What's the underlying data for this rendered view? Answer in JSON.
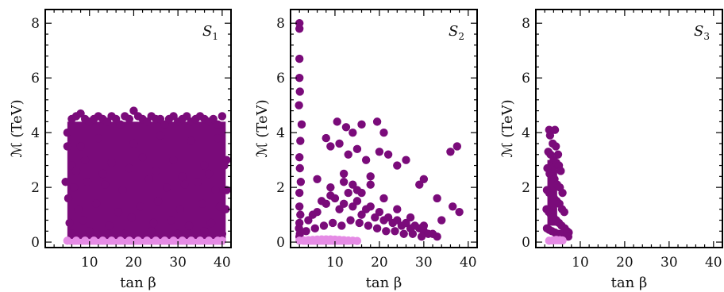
{
  "chart_data": [
    {
      "type": "scatter",
      "title": "S",
      "title_sub": "1",
      "xlabel": "tan β",
      "ylabel": "ℳ (TeV)",
      "xticks": [
        10,
        20,
        30,
        40
      ],
      "yticks": [
        0,
        2,
        4,
        6,
        8
      ],
      "xlim": [
        0,
        42
      ],
      "ylim": [
        -0.2,
        8.5
      ],
      "colors": {
        "main": "#7a0b7a",
        "low": "#e58be5"
      },
      "series": [
        {
          "color": "main",
          "x": [
            5,
            6,
            7,
            8,
            9,
            10,
            11,
            12,
            13,
            14,
            15,
            16,
            17,
            18,
            19,
            20,
            21,
            22,
            23,
            24,
            25,
            26,
            27,
            28,
            29,
            30,
            31,
            32,
            33,
            34,
            35,
            36,
            37,
            38,
            39,
            40,
            8,
            12,
            20,
            26,
            33,
            39,
            6,
            9,
            15,
            22,
            29,
            36,
            41,
            5,
            4.6,
            5.2,
            40.5,
            41,
            40.8,
            6.5,
            9.5,
            13.5,
            17.5,
            23.5,
            27.5,
            31.5,
            34.5,
            38.5,
            7.5,
            11.5,
            16.5,
            21.5,
            25.5,
            30.5,
            35.5,
            39.5,
            5.5,
            8.5,
            14.5,
            19.5,
            24.5,
            28.5,
            32.5,
            37.5,
            6,
            10,
            18,
            24,
            30,
            36,
            40,
            7,
            13,
            19,
            25,
            31,
            37
          ],
          "y": [
            4.0,
            4.5,
            4.6,
            4.7,
            4.5,
            4.4,
            4.5,
            4.6,
            4.5,
            4.4,
            4.6,
            4.5,
            4.3,
            4.6,
            4.5,
            4.8,
            4.6,
            4.5,
            4.4,
            4.6,
            4.5,
            4.5,
            4.3,
            4.5,
            4.6,
            4.4,
            4.5,
            4.6,
            4.4,
            4.5,
            4.6,
            4.5,
            4.4,
            4.5,
            4.3,
            4.6,
            3.5,
            3.8,
            3.6,
            3.9,
            3.7,
            3.8,
            2.8,
            3.0,
            2.9,
            3.1,
            3.0,
            2.8,
            3.0,
            3.5,
            2.2,
            1.6,
            2.8,
            1.9,
            1.2,
            2.0,
            2.2,
            2.1,
            1.9,
            2.3,
            2.0,
            2.1,
            2.2,
            1.9,
            1.2,
            1.4,
            1.1,
            1.3,
            1.5,
            1.2,
            1.4,
            1.3,
            0.7,
            0.8,
            0.6,
            0.9,
            0.7,
            0.8,
            0.6,
            0.7,
            0.3,
            0.4,
            0.3,
            0.4,
            0.3,
            0.4,
            0.3,
            2.6,
            2.5,
            2.7,
            2.6,
            2.4,
            2.5
          ]
        },
        {
          "color": "low",
          "x": [
            5,
            7,
            9,
            11,
            13,
            15,
            17,
            19,
            21,
            23,
            25,
            27,
            29,
            31,
            33,
            35,
            37,
            39,
            40
          ],
          "y": [
            0.05,
            0.05,
            0.05,
            0.05,
            0.05,
            0.05,
            0.05,
            0.05,
            0.05,
            0.05,
            0.05,
            0.05,
            0.05,
            0.05,
            0.05,
            0.05,
            0.05,
            0.05,
            0.05
          ]
        }
      ],
      "fill_region": {
        "x": [
          5,
          40.8
        ],
        "y": [
          0.1,
          4.4
        ]
      }
    },
    {
      "type": "scatter",
      "title": "S",
      "title_sub": "2",
      "xlabel": "tan β",
      "ylabel": "ℳ (TeV)",
      "xticks": [
        10,
        20,
        30,
        40
      ],
      "yticks": [
        0,
        2,
        4,
        6,
        8
      ],
      "xlim": [
        0,
        42
      ],
      "ylim": [
        -0.2,
        8.5
      ],
      "colors": {
        "main": "#7a0b7a",
        "low": "#e58be5"
      },
      "series": [
        {
          "color": "main",
          "x": [
            2,
            2,
            2,
            2,
            2.1,
            1.9,
            2.5,
            2.2,
            2.0,
            2.1,
            2.3,
            2.0,
            2.0,
            2.2,
            2.0,
            1.9,
            2.1,
            2.0,
            10.5,
            12.5,
            14,
            16,
            19.5,
            21,
            8,
            9,
            11,
            13,
            15,
            17,
            20,
            22,
            24,
            26,
            29,
            30,
            33,
            36,
            37.5,
            38,
            36.5,
            12,
            14,
            16,
            18,
            4,
            5,
            6,
            7,
            8,
            9,
            10,
            11,
            12,
            13,
            14,
            15,
            16,
            17,
            18,
            19,
            20,
            21,
            22,
            23,
            24,
            25,
            26,
            27,
            28,
            29,
            30,
            31,
            32,
            33,
            3.5,
            5.5,
            7.5,
            9.5,
            11.5,
            13.5,
            15.5,
            17.5,
            19.5,
            21.5,
            23.5,
            25.5,
            27.5,
            29.5,
            6,
            9,
            12,
            15,
            18,
            21,
            24,
            27,
            30,
            34
          ],
          "y": [
            8.0,
            7.8,
            6.7,
            6.0,
            5.5,
            5.0,
            4.3,
            3.7,
            3.1,
            2.7,
            2.2,
            1.8,
            1.3,
            1.0,
            0.7,
            0.5,
            0.3,
            0.2,
            4.4,
            4.2,
            4.0,
            4.3,
            4.4,
            4.0,
            3.8,
            3.5,
            3.6,
            3.2,
            3.4,
            3.0,
            3.3,
            3.2,
            2.8,
            3.0,
            2.1,
            2.3,
            1.6,
            3.3,
            3.5,
            1.1,
            1.3,
            2.5,
            2.1,
            1.8,
            2.4,
            0.8,
            1.0,
            1.1,
            1.5,
            1.4,
            1.7,
            1.6,
            1.2,
            1.4,
            1.8,
            1.3,
            1.5,
            1.0,
            1.2,
            1.3,
            0.9,
            1.1,
            0.8,
            0.9,
            0.7,
            0.8,
            0.6,
            0.7,
            0.5,
            0.6,
            0.5,
            0.4,
            0.3,
            0.3,
            0.2,
            0.4,
            0.5,
            0.6,
            0.7,
            0.6,
            0.8,
            0.7,
            0.6,
            0.5,
            0.4,
            0.4,
            0.3,
            0.3,
            0.2,
            2.3,
            2.0,
            2.2,
            1.9,
            2.1,
            1.6,
            1.2,
            0.9,
            0.6,
            0.8
          ]
        },
        {
          "color": "low",
          "x": [
            2,
            3,
            4,
            5,
            6,
            7,
            8,
            9,
            10,
            11,
            12,
            13,
            14,
            15
          ],
          "y": [
            0.05,
            0.06,
            0.07,
            0.08,
            0.09,
            0.1,
            0.1,
            0.1,
            0.09,
            0.08,
            0.07,
            0.06,
            0.05,
            0.04
          ]
        }
      ]
    },
    {
      "type": "scatter",
      "title": "S",
      "title_sub": "3",
      "xlabel": "tan β",
      "ylabel": "ℳ (TeV)",
      "xticks": [
        10,
        20,
        30,
        40
      ],
      "yticks": [
        0,
        2,
        4,
        6,
        8
      ],
      "xlim": [
        0,
        42
      ],
      "ylim": [
        -0.2,
        8.5
      ],
      "colors": {
        "main": "#7a0b7a",
        "low": "#e58be5"
      },
      "series": [
        {
          "color": "main",
          "x": [
            3.0,
            4.3,
            3.2,
            3.8,
            4.5,
            5.0,
            2.8,
            3.3,
            4.0,
            4.6,
            5.2,
            5.6,
            2.6,
            3.1,
            3.7,
            4.2,
            4.8,
            5.4,
            6.0,
            2.5,
            3.0,
            3.5,
            4.1,
            4.7,
            5.3,
            5.9,
            6.4,
            2.4,
            2.9,
            3.4,
            4.0,
            4.6,
            5.2,
            5.8,
            6.5,
            7.0,
            7.4,
            2.5,
            3.0,
            3.6,
            4.3,
            5.0,
            5.7,
            6.3,
            7.0,
            7.3
          ],
          "y": [
            4.1,
            4.1,
            3.9,
            3.6,
            3.5,
            3.2,
            3.3,
            3.2,
            3.0,
            2.9,
            2.8,
            2.6,
            2.7,
            2.5,
            2.4,
            2.3,
            2.1,
            2.0,
            1.8,
            1.9,
            1.8,
            1.7,
            1.6,
            1.5,
            1.4,
            1.2,
            1.1,
            1.2,
            1.1,
            1.0,
            0.9,
            0.8,
            0.7,
            0.6,
            0.5,
            0.4,
            0.35,
            0.5,
            0.45,
            0.4,
            0.35,
            0.3,
            0.3,
            0.25,
            0.3,
            0.2
          ]
        },
        {
          "color": "low",
          "x": [
            3.0,
            3.8,
            4.6,
            5.4,
            6.0
          ],
          "y": [
            0.05,
            0.06,
            0.08,
            0.07,
            0.06
          ]
        }
      ],
      "fill_region": {
        "x": [
          2.6,
          4.8
        ],
        "y": [
          0.6,
          3.0
        ]
      }
    }
  ]
}
